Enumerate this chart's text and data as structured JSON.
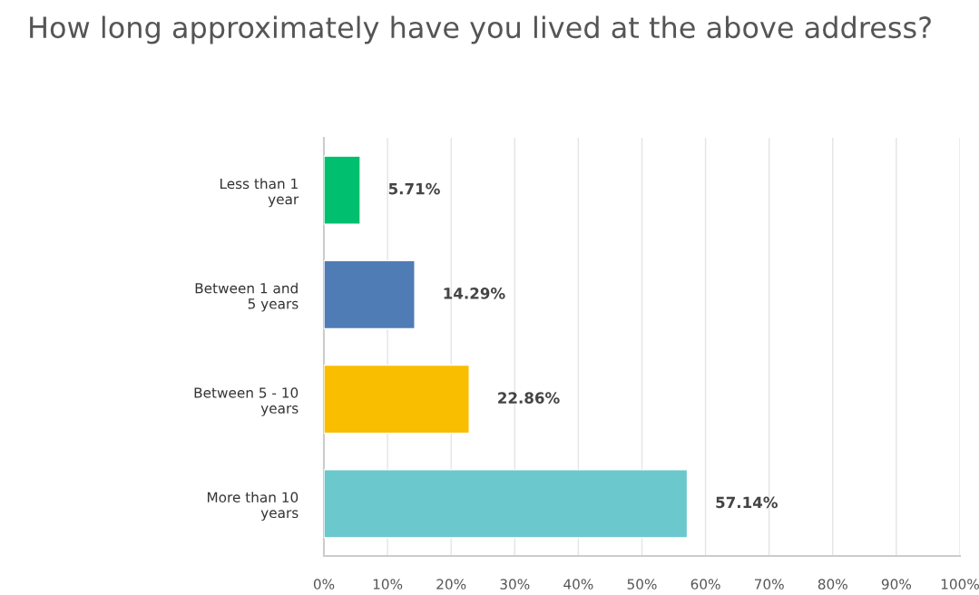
{
  "chart_data": {
    "type": "bar",
    "orientation": "horizontal",
    "title": "How long approximately have you lived at the above address?",
    "categories": [
      "Less than 1 year",
      "Between 1 and 5 years",
      "Between 5 - 10 years",
      "More than 10 years"
    ],
    "values": [
      5.71,
      14.29,
      22.86,
      57.14
    ],
    "colors": [
      "#00bf6f",
      "#507cb6",
      "#f9be00",
      "#6bc8cd"
    ],
    "value_labels": [
      "5.71%",
      "14.29%",
      "22.86%",
      "57.14%"
    ],
    "xlim": [
      0,
      100
    ],
    "xticks": [
      {
        "value": 0,
        "label": "0%"
      },
      {
        "value": 10,
        "label": "10%"
      },
      {
        "value": 20,
        "label": "20%"
      },
      {
        "value": 30,
        "label": "30%"
      },
      {
        "value": 40,
        "label": "40%"
      },
      {
        "value": 50,
        "label": "50%"
      },
      {
        "value": 60,
        "label": "60%"
      },
      {
        "value": 70,
        "label": "70%"
      },
      {
        "value": 80,
        "label": "80%"
      },
      {
        "value": 90,
        "label": "90%"
      },
      {
        "value": 100,
        "label": "100%"
      }
    ],
    "grid": "x",
    "legend": false
  }
}
